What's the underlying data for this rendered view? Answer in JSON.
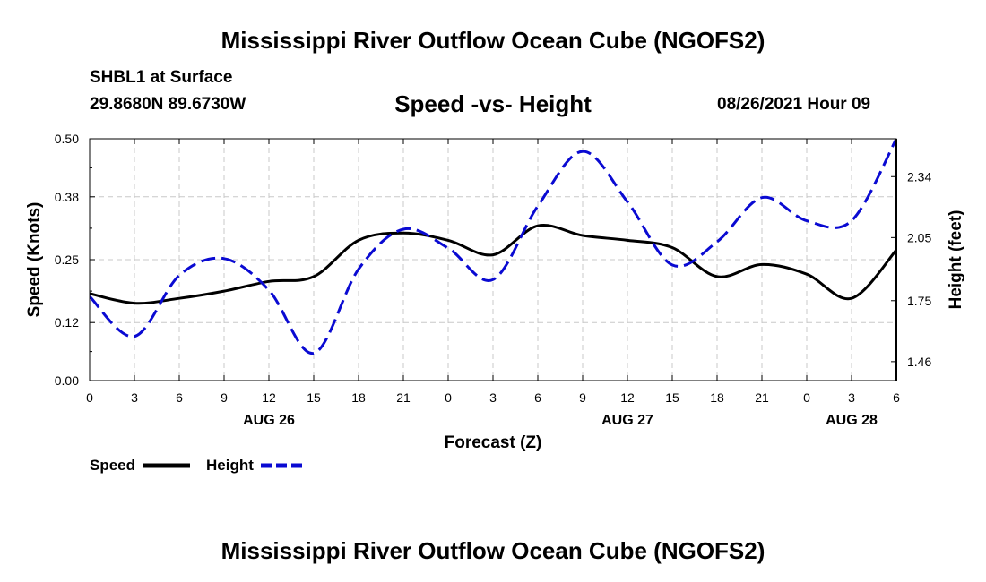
{
  "header": {
    "title": "Mississippi River Outflow Ocean Cube (NGOFS2)",
    "station": "SHBL1 at Surface",
    "coords": "29.8680N  89.6730W",
    "datetime": "08/26/2021 Hour 09"
  },
  "footer": {
    "title": "Mississippi River Outflow Ocean Cube (NGOFS2)"
  },
  "chart_data": {
    "type": "line",
    "title": "Speed -vs- Height",
    "xlabel": "Forecast (Z)",
    "ylabel": "Speed (Knots)",
    "y2label": "Height (feet)",
    "xlim": [
      0,
      54
    ],
    "ylim": [
      0,
      0.5
    ],
    "y2lim": [
      1.37,
      2.52
    ],
    "x_tick_values": [
      0,
      3,
      6,
      9,
      12,
      15,
      18,
      21,
      24,
      27,
      30,
      33,
      36,
      39,
      42,
      45,
      48,
      51,
      54
    ],
    "x_tick_labels": [
      "0",
      "3",
      "6",
      "9",
      "12",
      "15",
      "18",
      "21",
      "0",
      "3",
      "6",
      "9",
      "12",
      "15",
      "18",
      "21",
      "0",
      "3",
      "6"
    ],
    "date_labels": [
      {
        "x": 12,
        "label": "AUG 26"
      },
      {
        "x": 36,
        "label": "AUG 27"
      },
      {
        "x": 51,
        "label": "AUG 28"
      }
    ],
    "y_ticks": [
      0,
      0.12,
      0.25,
      0.38,
      0.5
    ],
    "y_tick_labels": [
      "0.00",
      "0.12",
      "0.25",
      "0.38",
      "0.50"
    ],
    "y2_ticks": [
      1.46,
      1.75,
      2.05,
      2.34
    ],
    "y2_tick_labels": [
      "1.46",
      "1.75",
      "2.05",
      "2.34"
    ],
    "grid": true,
    "legend": "bottom-left",
    "colors": {
      "speed": "#000000",
      "height": "#0a0ad2",
      "grid": "#c8c8c8"
    },
    "series": [
      {
        "name": "Speed",
        "axis": "left",
        "style": "solid",
        "x": [
          0,
          3,
          6,
          9,
          12,
          15,
          18,
          21,
          24,
          27,
          30,
          33,
          36,
          39,
          42,
          45,
          48,
          51,
          54
        ],
        "values": [
          0.18,
          0.16,
          0.17,
          0.185,
          0.205,
          0.215,
          0.29,
          0.305,
          0.29,
          0.26,
          0.32,
          0.3,
          0.29,
          0.275,
          0.215,
          0.24,
          0.22,
          0.17,
          0.27
        ]
      },
      {
        "name": "Height",
        "axis": "right",
        "style": "dashed",
        "x": [
          0,
          3,
          6,
          9,
          12,
          15,
          18,
          21,
          24,
          27,
          30,
          33,
          36,
          39,
          42,
          45,
          48,
          51,
          54
        ],
        "values": [
          1.77,
          1.58,
          1.87,
          1.95,
          1.8,
          1.5,
          1.9,
          2.09,
          2.0,
          1.85,
          2.2,
          2.46,
          2.22,
          1.92,
          2.03,
          2.24,
          2.13,
          2.13,
          2.52
        ]
      }
    ]
  }
}
